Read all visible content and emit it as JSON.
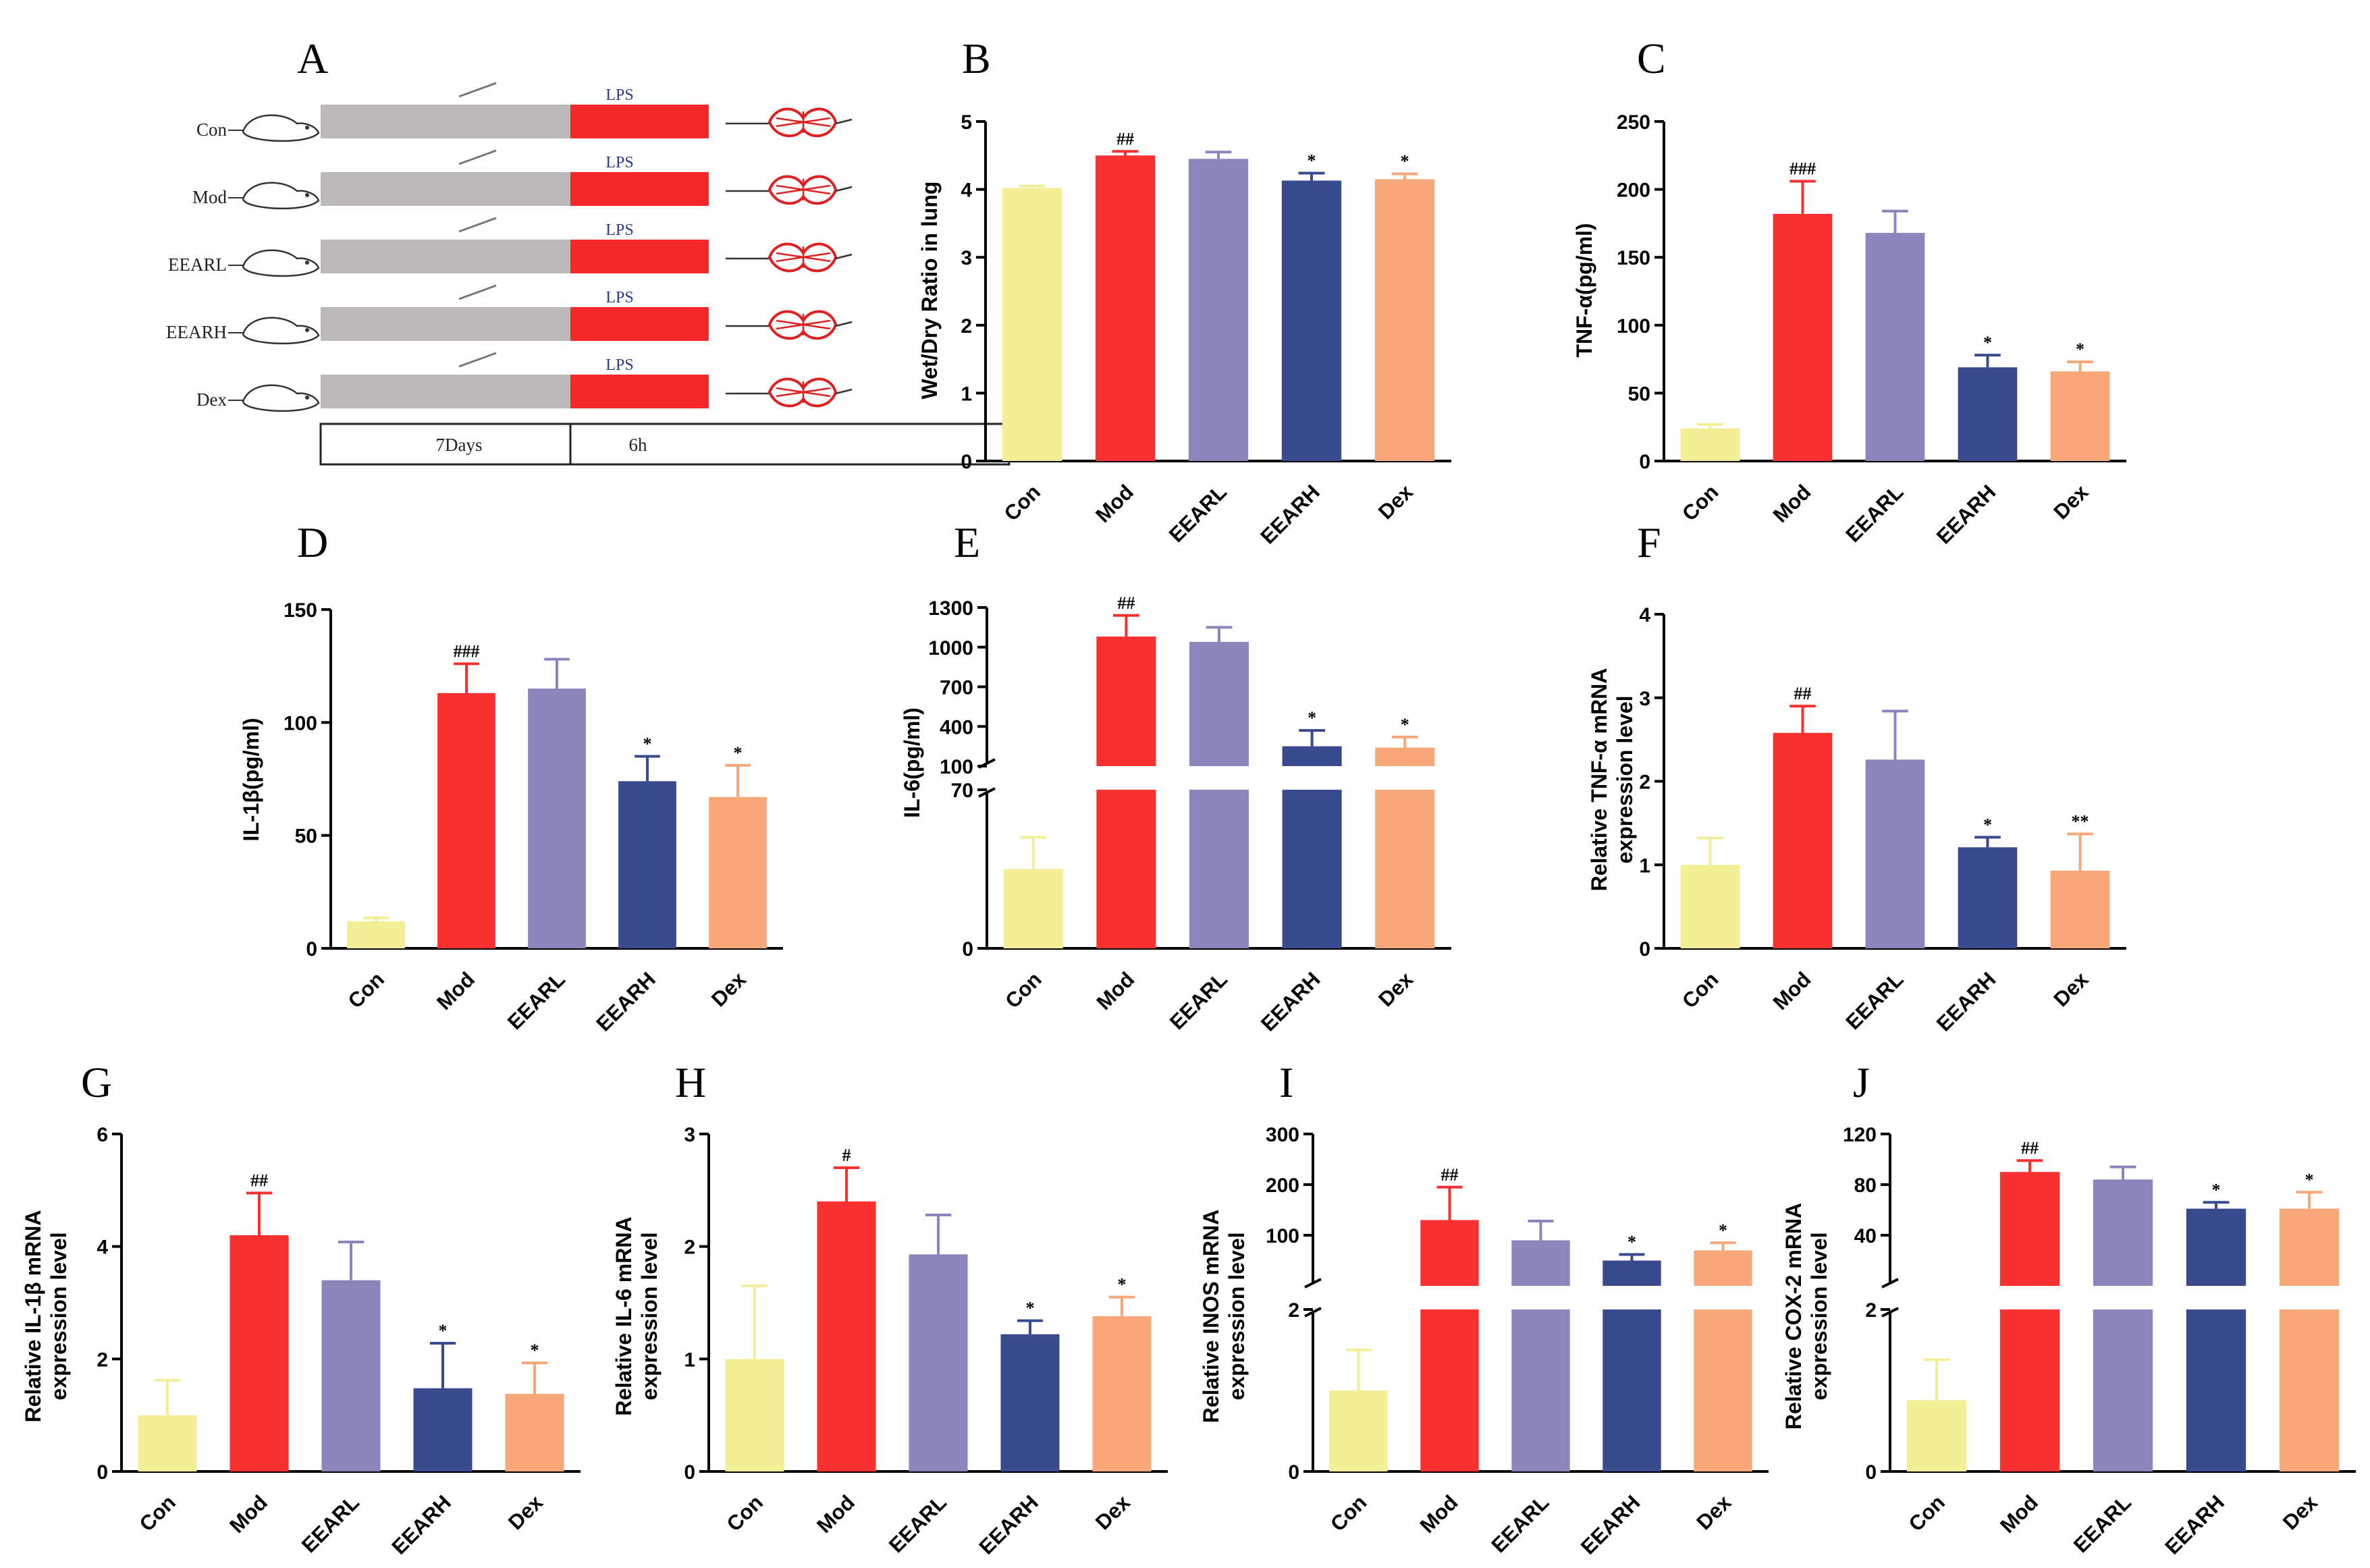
{
  "colors": {
    "con": "#f3ef96",
    "mod": "#f83030",
    "eearl": "#8a86bc",
    "eearh": "#3a4a8e",
    "dex": "#f8a878",
    "grey_bar": "#bdb8b8",
    "lps_bar": "#f42828"
  },
  "schematic": {
    "letter": "A",
    "groups": [
      "Con",
      "Mod",
      "EEARL",
      "EEARH",
      "Dex"
    ],
    "lps_label": "LPS",
    "duration_1": "7Days",
    "duration_2": "6h"
  },
  "chart_data": [
    {
      "letter": "B",
      "type": "bar",
      "categories": [
        "Con",
        "Mod",
        "EEARL",
        "EEARH",
        "Dex"
      ],
      "values": [
        4.02,
        4.5,
        4.45,
        4.13,
        4.15
      ],
      "errors": [
        0.03,
        0.06,
        0.1,
        0.11,
        0.08
      ],
      "significance": [
        "",
        "##",
        "",
        "*",
        "*"
      ],
      "ylabel": "Wet/Dry Ratio in lung",
      "ylim": [
        0,
        5
      ],
      "yticks": [
        0,
        1,
        2,
        3,
        4,
        5
      ]
    },
    {
      "letter": "C",
      "type": "bar",
      "categories": [
        "Con",
        "Mod",
        "EEARL",
        "EEARH",
        "Dex"
      ],
      "values": [
        24,
        182,
        168,
        69,
        66
      ],
      "errors": [
        3,
        24,
        16,
        9,
        7
      ],
      "significance": [
        "",
        "###",
        "",
        "*",
        "*"
      ],
      "ylabel": "TNF-α(pg/ml)",
      "ylim": [
        0,
        250
      ],
      "yticks": [
        0,
        50,
        100,
        150,
        200,
        250
      ]
    },
    {
      "letter": "D",
      "type": "bar",
      "categories": [
        "Con",
        "Mod",
        "EEARL",
        "EEARH",
        "Dex"
      ],
      "values": [
        12,
        113,
        115,
        74,
        67
      ],
      "errors": [
        1.5,
        13,
        13,
        11,
        14
      ],
      "significance": [
        "",
        "###",
        "",
        "*",
        "*"
      ],
      "ylabel": "IL-1β(pg/ml)",
      "ylim": [
        0,
        150
      ],
      "yticks": [
        0,
        50,
        100,
        150
      ]
    },
    {
      "letter": "E",
      "type": "bar",
      "categories": [
        "Con",
        "Mod",
        "EEARL",
        "EEARH",
        "Dex"
      ],
      "values": [
        35,
        1080,
        1040,
        250,
        240
      ],
      "errors": [
        14,
        160,
        110,
        120,
        80
      ],
      "significance": [
        "",
        "##",
        "",
        "*",
        "*"
      ],
      "ylabel": "IL-6(pg/ml)",
      "broken_axis": {
        "lower": [
          0,
          70
        ],
        "upper": [
          100,
          1300
        ]
      },
      "yticks_lower": [
        0,
        70
      ],
      "yticks_upper": [
        100,
        400,
        700,
        1000,
        1300
      ]
    },
    {
      "letter": "F",
      "type": "bar",
      "categories": [
        "Con",
        "Mod",
        "EEARL",
        "EEARH",
        "Dex"
      ],
      "values": [
        1.0,
        2.58,
        2.26,
        1.21,
        0.93
      ],
      "errors": [
        0.32,
        0.32,
        0.58,
        0.12,
        0.44
      ],
      "significance": [
        "",
        "##",
        "",
        "*",
        "**"
      ],
      "ylabel": "Relative TNF-α mRNA",
      "ylabel2": "expression level",
      "ylim": [
        0,
        4
      ],
      "yticks": [
        0,
        1,
        2,
        3,
        4
      ]
    },
    {
      "letter": "G",
      "type": "bar",
      "categories": [
        "Con",
        "Mod",
        "EEARL",
        "EEARH",
        "Dex"
      ],
      "values": [
        1.0,
        4.2,
        3.4,
        1.48,
        1.38
      ],
      "errors": [
        0.62,
        0.75,
        0.68,
        0.8,
        0.55
      ],
      "significance": [
        "",
        "##",
        "",
        "*",
        "*"
      ],
      "ylabel": "Relative IL-1β mRNA",
      "ylabel2": "expression level",
      "ylim": [
        0,
        6
      ],
      "yticks": [
        0,
        2,
        4,
        6
      ]
    },
    {
      "letter": "H",
      "type": "bar",
      "categories": [
        "Con",
        "Mod",
        "EEARL",
        "EEARH",
        "Dex"
      ],
      "values": [
        1.0,
        2.4,
        1.93,
        1.22,
        1.38
      ],
      "errors": [
        0.65,
        0.3,
        0.35,
        0.12,
        0.17
      ],
      "significance": [
        "",
        "#",
        "",
        "*",
        "*"
      ],
      "ylabel": "Relative IL-6 mRNA",
      "ylabel2": "expression level",
      "ylim": [
        0,
        3
      ],
      "yticks": [
        0,
        1,
        2,
        3
      ]
    },
    {
      "letter": "I",
      "type": "bar",
      "categories": [
        "Con",
        "Mod",
        "EEARL",
        "EEARH",
        "Dex"
      ],
      "values": [
        1.0,
        130,
        90,
        50,
        70
      ],
      "errors": [
        0.5,
        65,
        38,
        12,
        15
      ],
      "significance": [
        "",
        "##",
        "",
        "*",
        "*"
      ],
      "ylabel": "Relative INOS mRNA",
      "ylabel2": "expression level",
      "broken_axis": {
        "lower": [
          0,
          2
        ],
        "upper": [
          0,
          300
        ]
      },
      "yticks_lower": [
        0,
        2
      ],
      "yticks_upper": [
        100,
        200,
        300
      ]
    },
    {
      "letter": "J",
      "type": "bar",
      "categories": [
        "Con",
        "Mod",
        "EEARL",
        "EEARH",
        "Dex"
      ],
      "values": [
        0.88,
        90,
        84,
        61,
        61
      ],
      "errors": [
        0.5,
        9,
        10,
        5,
        13
      ],
      "significance": [
        "",
        "##",
        "",
        "*",
        "*"
      ],
      "ylabel": "Relative COX-2 mRNA",
      "ylabel2": "expression level",
      "broken_axis": {
        "lower": [
          0,
          2
        ],
        "upper": [
          0,
          120
        ]
      },
      "yticks_lower": [
        0,
        2
      ],
      "yticks_upper": [
        40,
        80,
        120
      ]
    }
  ]
}
